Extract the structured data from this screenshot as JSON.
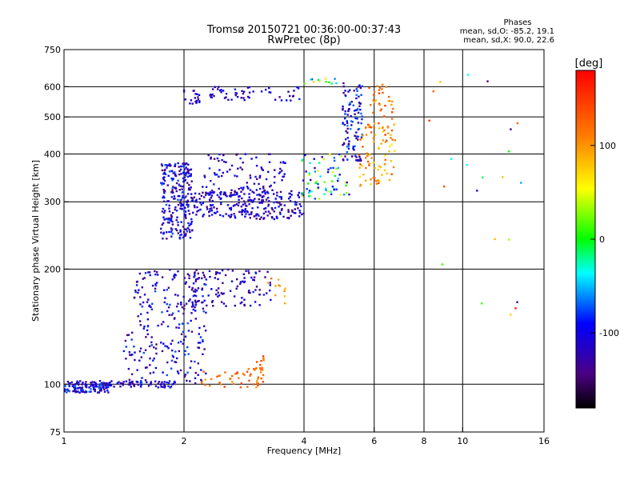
{
  "chart_data": {
    "type": "scatter",
    "title": "Tromsø 20150721 00:36:00-00:37:43",
    "subtitle": "RwPretec (8p)",
    "xlabel": "Frequency [MHz]",
    "ylabel": "Stationary phase Virtual Height [km]",
    "x_scale": "log",
    "y_scale": "log",
    "xlim": [
      1,
      16
    ],
    "ylim": [
      75,
      750
    ],
    "x_ticks": [
      1,
      2,
      4,
      6,
      8,
      10,
      16
    ],
    "y_ticks": [
      75,
      100,
      200,
      300,
      400,
      500,
      600,
      750
    ],
    "x_grid": [
      2,
      4,
      6,
      8,
      10
    ],
    "y_grid": [
      100,
      200,
      300,
      400,
      500,
      600
    ],
    "phase_stats": {
      "title": "Phases",
      "o_line": "mean, sd,O: -85.2, 19.1",
      "x_line": "mean, sd,X:  90.0, 22.6"
    },
    "colorbar": {
      "label": "[deg]",
      "ticks": [
        100,
        0,
        -100
      ],
      "range": [
        -180,
        180
      ]
    },
    "clusters": [
      {
        "x": [
          1.0,
          1.3
        ],
        "y": [
          95,
          102
        ],
        "n": 140,
        "phase": [
          -150,
          -60
        ]
      },
      {
        "x": [
          1.3,
          1.9
        ],
        "y": [
          98,
          102
        ],
        "n": 60,
        "phase": [
          -140,
          -80
        ]
      },
      {
        "x": [
          1.4,
          2.3
        ],
        "y": [
          100,
          140
        ],
        "n": 120,
        "phase": [
          -150,
          -70
        ]
      },
      {
        "x": [
          1.5,
          2.3
        ],
        "y": [
          140,
          200
        ],
        "n": 130,
        "phase": [
          -150,
          -70
        ]
      },
      {
        "x": [
          2.0,
          3.3
        ],
        "y": [
          160,
          200
        ],
        "n": 110,
        "phase": [
          -150,
          -80
        ]
      },
      {
        "x": [
          3.2,
          3.6
        ],
        "y": [
          160,
          190
        ],
        "n": 12,
        "phase": [
          80,
          130
        ]
      },
      {
        "x": [
          2.2,
          3.2
        ],
        "y": [
          98,
          108
        ],
        "n": 35,
        "phase": [
          90,
          150
        ]
      },
      {
        "x": [
          2.9,
          3.2
        ],
        "y": [
          100,
          120
        ],
        "n": 25,
        "phase": [
          90,
          150
        ]
      },
      {
        "x": [
          1.75,
          2.1
        ],
        "y": [
          240,
          380
        ],
        "n": 250,
        "phase": [
          -150,
          -70
        ]
      },
      {
        "x": [
          2.1,
          4.0
        ],
        "y": [
          270,
          320
        ],
        "n": 230,
        "phase": [
          -150,
          -80
        ]
      },
      {
        "x": [
          2.2,
          3.6
        ],
        "y": [
          300,
          400
        ],
        "n": 120,
        "phase": [
          -150,
          -80
        ]
      },
      {
        "x": [
          3.9,
          5.2
        ],
        "y": [
          305,
          400
        ],
        "n": 70,
        "phase": [
          -120,
          60
        ]
      },
      {
        "x": [
          5.0,
          5.6
        ],
        "y": [
          380,
          620
        ],
        "n": 110,
        "phase": [
          -150,
          -60
        ]
      },
      {
        "x": [
          5.5,
          6.8
        ],
        "y": [
          330,
          480
        ],
        "n": 80,
        "phase": [
          60,
          150
        ]
      },
      {
        "x": [
          5.8,
          6.7
        ],
        "y": [
          460,
          620
        ],
        "n": 40,
        "phase": [
          80,
          150
        ]
      },
      {
        "x": [
          2.0,
          2.2
        ],
        "y": [
          540,
          590
        ],
        "n": 20,
        "phase": [
          -140,
          -90
        ]
      },
      {
        "x": [
          2.3,
          3.9
        ],
        "y": [
          550,
          600
        ],
        "n": 55,
        "phase": [
          -150,
          -80
        ]
      },
      {
        "x": [
          4.0,
          5.0
        ],
        "y": [
          610,
          630
        ],
        "n": 12,
        "phase": [
          -120,
          80
        ]
      },
      {
        "x": [
          8.0,
          14.5
        ],
        "y": [
          150,
          680
        ],
        "n": 22,
        "phase": [
          -160,
          160
        ]
      }
    ]
  }
}
